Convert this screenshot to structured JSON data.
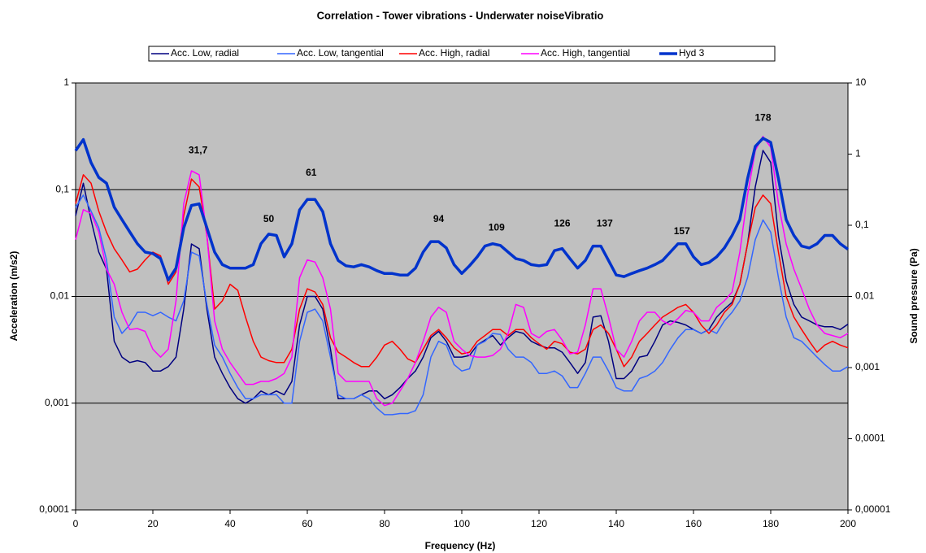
{
  "chart_data": {
    "type": "line",
    "title": "Correlation - Tower vibrations - Underwater noiseVibratio",
    "xlabel": "Frequency (Hz)",
    "ylabel": "Acceleration (m/s2)",
    "y2label": "Sound pressure (Pa)",
    "xlim": [
      0,
      200
    ],
    "xticks": [
      0,
      20,
      40,
      60,
      80,
      100,
      120,
      140,
      160,
      180,
      200
    ],
    "ylim": [
      0.0001,
      1
    ],
    "ylog": true,
    "yticks": [
      {
        "value": 0.0001,
        "label": "0,0001"
      },
      {
        "value": 0.001,
        "label": "0,001"
      },
      {
        "value": 0.01,
        "label": "0,01"
      },
      {
        "value": 0.1,
        "label": "0,1"
      },
      1
    ],
    "y2lim": [
      1e-05,
      10
    ],
    "y2log": true,
    "y2ticks": [
      {
        "value": 1e-05,
        "label": "0,00001"
      },
      {
        "value": 0.0001,
        "label": "0,0001"
      },
      {
        "value": 0.001,
        "label": "0,001"
      },
      {
        "value": 0.01,
        "label": "0,01"
      },
      {
        "value": 0.1,
        "label": "0,1"
      },
      1,
      10
    ],
    "grid": true,
    "legend": "top",
    "x": [
      0,
      2,
      4,
      6,
      8,
      10,
      12,
      14,
      16,
      18,
      20,
      22,
      24,
      26,
      28,
      30,
      32,
      34,
      36,
      38,
      40,
      42,
      44,
      46,
      48,
      50,
      52,
      54,
      56,
      58,
      60,
      62,
      64,
      66,
      68,
      70,
      72,
      74,
      76,
      78,
      80,
      82,
      84,
      86,
      88,
      90,
      92,
      94,
      96,
      98,
      100,
      102,
      104,
      106,
      108,
      110,
      112,
      114,
      116,
      118,
      120,
      122,
      124,
      126,
      128,
      130,
      132,
      134,
      136,
      138,
      140,
      142,
      144,
      146,
      148,
      150,
      152,
      154,
      156,
      158,
      160,
      162,
      164,
      166,
      168,
      170,
      172,
      174,
      176,
      178,
      180,
      182,
      184,
      186,
      188,
      190,
      192,
      194,
      196,
      198,
      200
    ],
    "series": [
      {
        "name": "Acc. Low, radial",
        "color": "#000080",
        "values": [
          0.057,
          0.115,
          0.052,
          0.026,
          0.018,
          0.0038,
          0.0027,
          0.0024,
          0.0025,
          0.0024,
          0.002,
          0.002,
          0.0022,
          0.0027,
          0.0076,
          0.031,
          0.028,
          0.0076,
          0.0027,
          0.0019,
          0.0014,
          0.0011,
          0.001,
          0.0011,
          0.0013,
          0.0012,
          0.0013,
          0.0012,
          0.0016,
          0.0054,
          0.01,
          0.01,
          0.0076,
          0.0032,
          0.0011,
          0.0011,
          0.0011,
          0.0012,
          0.0013,
          0.0013,
          0.0011,
          0.0012,
          0.0014,
          0.0017,
          0.002,
          0.0027,
          0.0041,
          0.0047,
          0.0038,
          0.0027,
          0.0027,
          0.0028,
          0.0035,
          0.0039,
          0.0043,
          0.0035,
          0.0041,
          0.0047,
          0.0045,
          0.0038,
          0.0035,
          0.0033,
          0.0033,
          0.003,
          0.0024,
          0.0019,
          0.0024,
          0.0064,
          0.0066,
          0.0038,
          0.0017,
          0.0017,
          0.002,
          0.0027,
          0.0028,
          0.0038,
          0.0054,
          0.0059,
          0.0057,
          0.0054,
          0.0049,
          0.0045,
          0.0049,
          0.0064,
          0.0076,
          0.0088,
          0.013,
          0.031,
          0.106,
          0.233,
          0.18,
          0.037,
          0.014,
          0.0084,
          0.0064,
          0.0059,
          0.0054,
          0.0052,
          0.0052,
          0.0049,
          0.0055
        ]
      },
      {
        "name": "Acc. Low, tangential",
        "color": "#3366ff",
        "values": [
          0.068,
          0.089,
          0.063,
          0.044,
          0.022,
          0.0064,
          0.0045,
          0.0054,
          0.0071,
          0.0071,
          0.0066,
          0.0071,
          0.0064,
          0.0059,
          0.0091,
          0.026,
          0.024,
          0.0084,
          0.0035,
          0.0027,
          0.0019,
          0.0014,
          0.0011,
          0.0011,
          0.0012,
          0.0012,
          0.0012,
          0.001,
          0.001,
          0.0038,
          0.0071,
          0.0076,
          0.0059,
          0.0027,
          0.0012,
          0.0011,
          0.0011,
          0.0012,
          0.0011,
          0.0009,
          0.00078,
          0.00078,
          0.0008,
          0.0008,
          0.00085,
          0.0012,
          0.0027,
          0.0038,
          0.0035,
          0.0023,
          0.002,
          0.0021,
          0.0035,
          0.0038,
          0.0045,
          0.0044,
          0.0032,
          0.0027,
          0.0027,
          0.0024,
          0.0019,
          0.0019,
          0.002,
          0.0018,
          0.0014,
          0.0014,
          0.0019,
          0.0027,
          0.0027,
          0.002,
          0.0014,
          0.0013,
          0.0013,
          0.0017,
          0.0018,
          0.002,
          0.0024,
          0.0032,
          0.0041,
          0.0049,
          0.0049,
          0.0045,
          0.0049,
          0.0045,
          0.0059,
          0.0071,
          0.0091,
          0.015,
          0.034,
          0.052,
          0.04,
          0.015,
          0.0064,
          0.0041,
          0.0038,
          0.0032,
          0.0027,
          0.0023,
          0.002,
          0.002,
          0.0022
        ]
      },
      {
        "name": "Acc. High, radial",
        "color": "#ff0000",
        "values": [
          0.074,
          0.138,
          0.115,
          0.063,
          0.04,
          0.028,
          0.022,
          0.017,
          0.018,
          0.022,
          0.026,
          0.024,
          0.013,
          0.017,
          0.057,
          0.126,
          0.106,
          0.037,
          0.0076,
          0.0091,
          0.013,
          0.0114,
          0.0064,
          0.0038,
          0.0027,
          0.0025,
          0.0024,
          0.0024,
          0.0032,
          0.0076,
          0.0118,
          0.011,
          0.0084,
          0.0041,
          0.003,
          0.0027,
          0.0024,
          0.0022,
          0.0022,
          0.0027,
          0.0035,
          0.0038,
          0.0032,
          0.0026,
          0.0024,
          0.0032,
          0.0043,
          0.0049,
          0.0041,
          0.0033,
          0.0029,
          0.003,
          0.0038,
          0.0043,
          0.0049,
          0.0049,
          0.0043,
          0.0049,
          0.0049,
          0.0041,
          0.0036,
          0.0032,
          0.0038,
          0.0036,
          0.003,
          0.0029,
          0.0032,
          0.0049,
          0.0054,
          0.0045,
          0.0032,
          0.0022,
          0.0027,
          0.0038,
          0.0045,
          0.0054,
          0.0064,
          0.0071,
          0.0079,
          0.0084,
          0.0071,
          0.0054,
          0.0045,
          0.0054,
          0.0071,
          0.0084,
          0.013,
          0.031,
          0.068,
          0.089,
          0.074,
          0.026,
          0.01,
          0.0064,
          0.0049,
          0.0038,
          0.003,
          0.0035,
          0.0038,
          0.0035,
          0.0033
        ]
      },
      {
        "name": "Acc. High, tangential",
        "color": "#ff00ff",
        "values": [
          0.034,
          0.065,
          0.06,
          0.04,
          0.018,
          0.013,
          0.0071,
          0.0049,
          0.005,
          0.0047,
          0.0032,
          0.0027,
          0.0032,
          0.0091,
          0.074,
          0.15,
          0.138,
          0.037,
          0.0059,
          0.0032,
          0.0024,
          0.0019,
          0.0015,
          0.0015,
          0.0016,
          0.0016,
          0.0017,
          0.0019,
          0.0027,
          0.015,
          0.022,
          0.021,
          0.015,
          0.0076,
          0.0019,
          0.0016,
          0.0016,
          0.0016,
          0.0016,
          0.0011,
          0.00095,
          0.001,
          0.0013,
          0.0017,
          0.0024,
          0.0038,
          0.0064,
          0.0079,
          0.0071,
          0.0038,
          0.0032,
          0.0028,
          0.0027,
          0.0027,
          0.0028,
          0.0032,
          0.0045,
          0.0084,
          0.0079,
          0.0045,
          0.0041,
          0.0047,
          0.0049,
          0.0039,
          0.0029,
          0.003,
          0.0054,
          0.0118,
          0.0118,
          0.0064,
          0.0032,
          0.0027,
          0.0038,
          0.0059,
          0.0071,
          0.0071,
          0.0059,
          0.0054,
          0.0062,
          0.0074,
          0.0071,
          0.0059,
          0.0059,
          0.0079,
          0.0091,
          0.011,
          0.026,
          0.089,
          0.233,
          0.315,
          0.25,
          0.074,
          0.031,
          0.018,
          0.0118,
          0.0076,
          0.0054,
          0.0045,
          0.0043,
          0.0041,
          0.0045
        ]
      },
      {
        "name": "Hyd 3",
        "color": "#0033cc",
        "axis": "y2",
        "values": [
          1.12,
          1.6,
          0.76,
          0.47,
          0.39,
          0.18,
          0.12,
          0.081,
          0.055,
          0.042,
          0.04,
          0.034,
          0.017,
          0.025,
          0.092,
          0.19,
          0.2,
          0.092,
          0.042,
          0.028,
          0.025,
          0.025,
          0.025,
          0.028,
          0.055,
          0.075,
          0.072,
          0.036,
          0.055,
          0.164,
          0.23,
          0.23,
          0.155,
          0.055,
          0.032,
          0.027,
          0.026,
          0.028,
          0.026,
          0.023,
          0.021,
          0.021,
          0.02,
          0.02,
          0.025,
          0.042,
          0.059,
          0.059,
          0.048,
          0.028,
          0.021,
          0.027,
          0.036,
          0.051,
          0.055,
          0.052,
          0.042,
          0.034,
          0.032,
          0.028,
          0.027,
          0.028,
          0.044,
          0.047,
          0.034,
          0.025,
          0.032,
          0.051,
          0.051,
          0.032,
          0.02,
          0.019,
          0.021,
          0.023,
          0.025,
          0.028,
          0.032,
          0.042,
          0.055,
          0.055,
          0.036,
          0.028,
          0.03,
          0.036,
          0.048,
          0.072,
          0.12,
          0.45,
          1.28,
          1.67,
          1.46,
          0.45,
          0.12,
          0.072,
          0.051,
          0.048,
          0.055,
          0.072,
          0.072,
          0.055,
          0.046
        ]
      }
    ],
    "annotations": [
      {
        "text": "31,7",
        "x": 31.7,
        "y": 1.12
      },
      {
        "text": "50",
        "x": 50,
        "y": 0.12
      },
      {
        "text": "61",
        "x": 61,
        "y": 0.54
      },
      {
        "text": "94",
        "x": 94,
        "y": 0.12
      },
      {
        "text": "109",
        "x": 109,
        "y": 0.092
      },
      {
        "text": "126",
        "x": 126,
        "y": 0.105
      },
      {
        "text": "137",
        "x": 137,
        "y": 0.105
      },
      {
        "text": "157",
        "x": 157,
        "y": 0.081
      },
      {
        "text": "178",
        "x": 178,
        "y": 3.2
      }
    ]
  }
}
